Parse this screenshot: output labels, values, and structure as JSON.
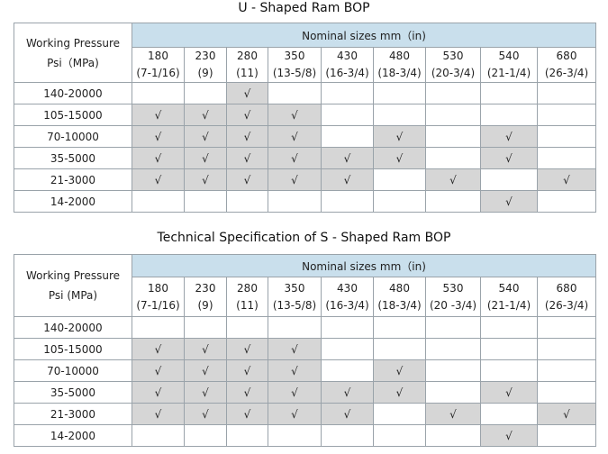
{
  "tables": [
    {
      "title": "U - Shaped Ram BOP",
      "corner_line1": "Working Pressure",
      "corner_line2": "Psi（MPa)",
      "nominal_header": "Nominal sizes  mm（in)",
      "sizes": [
        {
          "mm": "180",
          "in": "(7-1/16)"
        },
        {
          "mm": "230",
          "in": "(9)"
        },
        {
          "mm": "280",
          "in": "(11)"
        },
        {
          "mm": "350",
          "in": "(13-5/8)"
        },
        {
          "mm": "430",
          "in": "(16-3/4)"
        },
        {
          "mm": "480",
          "in": "(18-3/4)"
        },
        {
          "mm": "530",
          "in": "(20-3/4)"
        },
        {
          "mm": "540",
          "in": "(21-1/4)"
        },
        {
          "mm": "680",
          "in": "(26-3/4)"
        }
      ],
      "rows": [
        {
          "label": "140-20000",
          "cells": [
            "",
            "",
            "√",
            "",
            "",
            "",
            "",
            "",
            ""
          ]
        },
        {
          "label": "105-15000",
          "cells": [
            "√",
            "√",
            "√",
            "√",
            "",
            "",
            "",
            "",
            ""
          ]
        },
        {
          "label": "70-10000",
          "cells": [
            "√",
            "√",
            "√",
            "√",
            "",
            "√",
            "",
            "√",
            ""
          ]
        },
        {
          "label": "35-5000",
          "cells": [
            "√",
            "√",
            "√",
            "√",
            "√",
            "√",
            "",
            "√",
            ""
          ]
        },
        {
          "label": "21-3000",
          "cells": [
            "√",
            "√",
            "√",
            "√",
            "√",
            "",
            "√",
            "",
            "√"
          ]
        },
        {
          "label": "14-2000",
          "cells": [
            "",
            "",
            "",
            "",
            "",
            "",
            "",
            "√",
            ""
          ]
        }
      ],
      "shaded": [
        [
          false,
          false,
          true,
          false,
          false,
          false,
          false,
          false,
          false
        ],
        [
          true,
          true,
          true,
          true,
          false,
          false,
          false,
          false,
          false
        ],
        [
          true,
          true,
          true,
          true,
          false,
          true,
          false,
          true,
          false
        ],
        [
          true,
          true,
          true,
          true,
          true,
          true,
          false,
          true,
          false
        ],
        [
          true,
          true,
          true,
          true,
          true,
          false,
          true,
          false,
          true
        ],
        [
          false,
          false,
          false,
          false,
          false,
          false,
          false,
          true,
          false
        ]
      ]
    },
    {
      "title": "Technical Specification of S - Shaped Ram BOP",
      "corner_line1": "Working Pressure",
      "corner_line2": "Psi (MPa)",
      "nominal_header": "Nominal sizes  mm（in)",
      "sizes": [
        {
          "mm": "180",
          "in": "(7-1/16)"
        },
        {
          "mm": "230",
          "in": "(9)"
        },
        {
          "mm": "280",
          "in": "(11)"
        },
        {
          "mm": "350",
          "in": "(13-5/8)"
        },
        {
          "mm": "430",
          "in": "(16-3/4)"
        },
        {
          "mm": "480",
          "in": "(18-3/4)"
        },
        {
          "mm": "530",
          "in": "(20 -3/4)"
        },
        {
          "mm": "540",
          "in": "(21-1/4)"
        },
        {
          "mm": "680",
          "in": "(26-3/4)"
        }
      ],
      "rows": [
        {
          "label": "140-20000",
          "cells": [
            "",
            "",
            "",
            "",
            "",
            "",
            "",
            "",
            ""
          ]
        },
        {
          "label": "105-15000",
          "cells": [
            "√",
            "√",
            "√",
            "√",
            "",
            "",
            "",
            "",
            ""
          ]
        },
        {
          "label": "70-10000",
          "cells": [
            "√",
            "√",
            "√",
            "√",
            "",
            "√",
            "",
            "",
            ""
          ]
        },
        {
          "label": "35-5000",
          "cells": [
            "√",
            "√",
            "√",
            "√",
            "√",
            "√",
            "",
            "√",
            ""
          ]
        },
        {
          "label": "21-3000",
          "cells": [
            "√",
            "√",
            "√",
            "√",
            "√",
            "",
            "√",
            "",
            "√"
          ]
        },
        {
          "label": "14-2000",
          "cells": [
            "",
            "",
            "",
            "",
            "",
            "",
            "",
            "√",
            ""
          ]
        }
      ],
      "shaded": [
        [
          false,
          false,
          false,
          false,
          false,
          false,
          false,
          false,
          false
        ],
        [
          true,
          true,
          true,
          true,
          false,
          false,
          false,
          false,
          false
        ],
        [
          true,
          true,
          true,
          true,
          false,
          true,
          false,
          false,
          false
        ],
        [
          true,
          true,
          true,
          true,
          true,
          true,
          false,
          true,
          false
        ],
        [
          true,
          true,
          true,
          true,
          true,
          false,
          true,
          false,
          true
        ],
        [
          false,
          false,
          false,
          false,
          false,
          false,
          false,
          true,
          false
        ]
      ]
    }
  ]
}
